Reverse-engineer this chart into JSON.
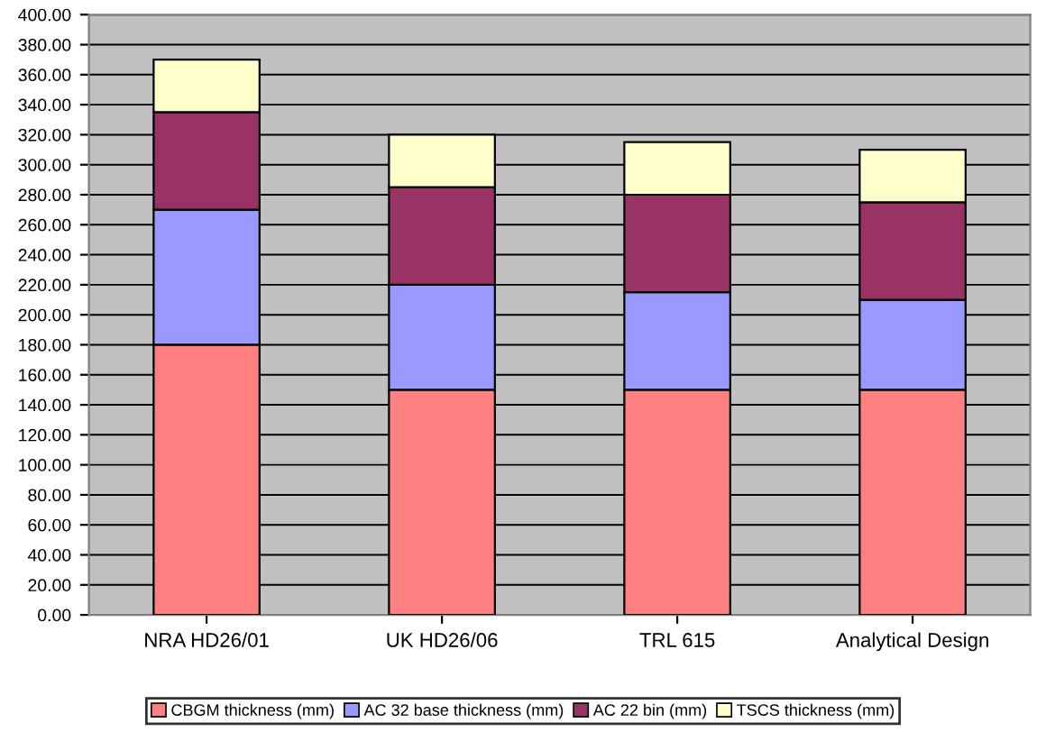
{
  "chart_data": {
    "type": "bar",
    "stacked": true,
    "categories": [
      "NRA HD26/01",
      "UK HD26/06",
      "TRL 615",
      "Analytical Design"
    ],
    "series": [
      {
        "name": "CBGM thickness (mm)",
        "color": "#ff8080",
        "values": [
          180,
          150,
          150,
          150
        ]
      },
      {
        "name": "AC 32 base thickness (mm)",
        "color": "#9999ff",
        "values": [
          90,
          70,
          65,
          60
        ]
      },
      {
        "name": "AC 22 bin (mm)",
        "color": "#993366",
        "values": [
          65,
          65,
          65,
          65
        ]
      },
      {
        "name": "TSCS thickness (mm)",
        "color": "#ffffcc",
        "values": [
          35,
          35,
          35,
          35
        ]
      }
    ],
    "ylim": [
      0,
      400
    ],
    "yticks": [
      {
        "value": 0,
        "label": "0.00"
      },
      {
        "value": 20,
        "label": "20.00"
      },
      {
        "value": 40,
        "label": "40.00"
      },
      {
        "value": 60,
        "label": "60.00"
      },
      {
        "value": 80,
        "label": "80.00"
      },
      {
        "value": 100,
        "label": "100.00"
      },
      {
        "value": 120,
        "label": "120.00"
      },
      {
        "value": 140,
        "label": "140.00"
      },
      {
        "value": 160,
        "label": "160.00"
      },
      {
        "value": 180,
        "label": "180.00"
      },
      {
        "value": 200,
        "label": "200.00"
      },
      {
        "value": 220,
        "label": "220.00"
      },
      {
        "value": 240,
        "label": "240.00"
      },
      {
        "value": 260,
        "label": "260.00"
      },
      {
        "value": 280,
        "label": "280.00"
      },
      {
        "value": 300,
        "label": "300.00"
      },
      {
        "value": 320,
        "label": "320.00"
      },
      {
        "value": 340,
        "label": "340.00"
      },
      {
        "value": 360,
        "label": "360.00"
      },
      {
        "value": 380,
        "label": "380.00"
      },
      {
        "value": 400,
        "label": "400.00"
      }
    ],
    "grid": "y",
    "legend": "bottom"
  }
}
